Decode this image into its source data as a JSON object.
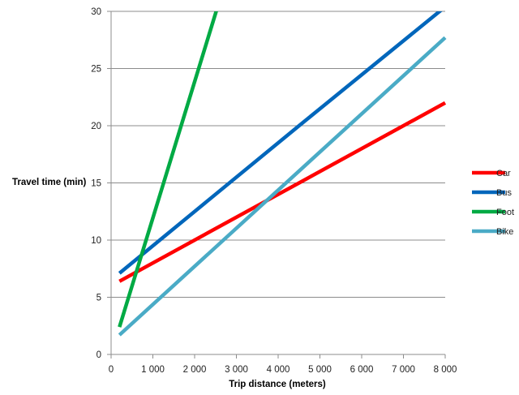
{
  "chart_data": {
    "type": "line",
    "title": "",
    "xlabel": "Trip distance (meters)",
    "ylabel": "Travel time (min)",
    "xlim": [
      0,
      8000
    ],
    "ylim": [
      0,
      30
    ],
    "x_ticks": [
      0,
      1000,
      2000,
      3000,
      4000,
      5000,
      6000,
      7000,
      8000
    ],
    "x_tick_labels": [
      "0",
      "1 000",
      "2 000",
      "3 000",
      "4 000",
      "5 000",
      "6 000",
      "7 000",
      "8 000"
    ],
    "y_ticks": [
      0,
      5,
      10,
      15,
      20,
      25,
      30
    ],
    "y_tick_labels": [
      "0",
      "5",
      "10",
      "15",
      "20",
      "25",
      "30"
    ],
    "grid": "horizontal",
    "legend_position": "right",
    "series": [
      {
        "name": "Car",
        "color": "#ff0000",
        "x": [
          200,
          8000
        ],
        "y": [
          6.4,
          22.0
        ]
      },
      {
        "name": "Bus",
        "color": "#0066bb",
        "x": [
          200,
          4500,
          8000
        ],
        "y": [
          7.1,
          20.0,
          30.4
        ]
      },
      {
        "name": "Foot",
        "color": "#00aa44",
        "x": [
          200,
          2550
        ],
        "y": [
          2.4,
          30.4
        ]
      },
      {
        "name": "Bike",
        "color": "#4aabc6",
        "x": [
          200,
          8000
        ],
        "y": [
          1.7,
          27.7
        ]
      }
    ]
  }
}
